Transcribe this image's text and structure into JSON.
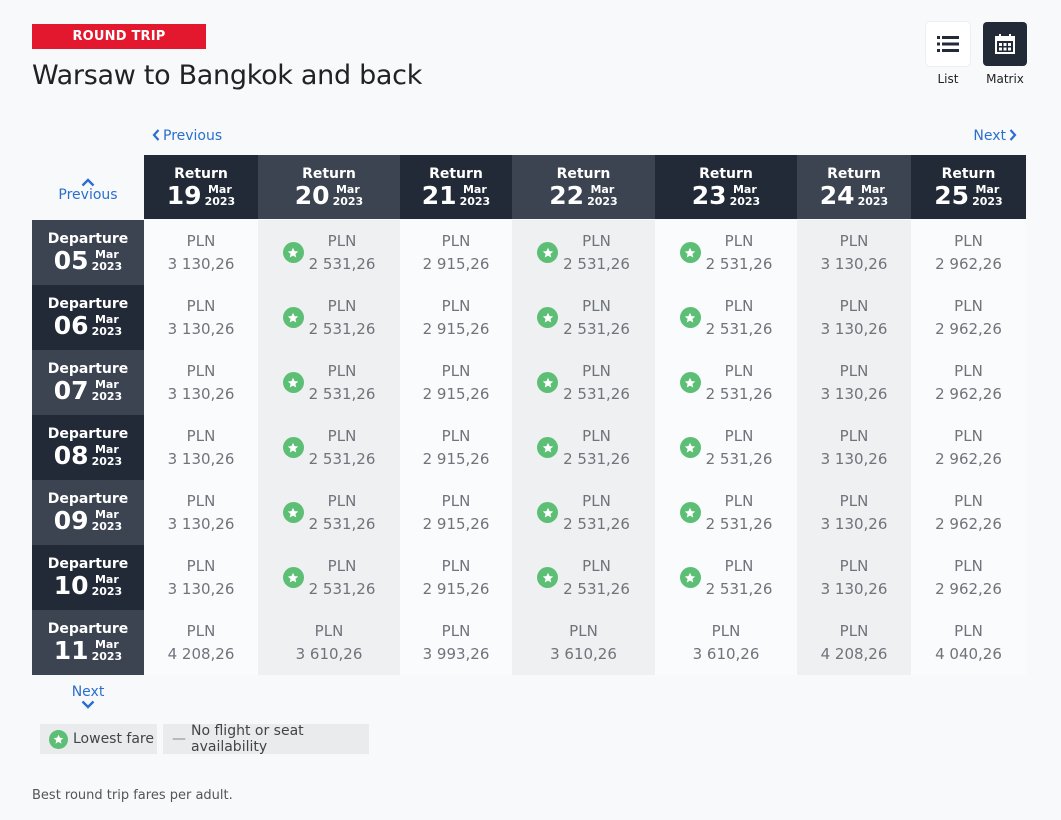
{
  "badge": "ROUND TRIP",
  "title": "Warsaw to Bangkok and back",
  "view": {
    "list_label": "List",
    "matrix_label": "Matrix",
    "selected": "Matrix"
  },
  "nav": {
    "previous": "Previous",
    "next": "Next",
    "previous_row": "Previous",
    "next_row": "Next"
  },
  "columns": [
    {
      "label": "Return",
      "day": "19",
      "month": "Mar",
      "year": "2023"
    },
    {
      "label": "Return",
      "day": "20",
      "month": "Mar",
      "year": "2023"
    },
    {
      "label": "Return",
      "day": "21",
      "month": "Mar",
      "year": "2023"
    },
    {
      "label": "Return",
      "day": "22",
      "month": "Mar",
      "year": "2023"
    },
    {
      "label": "Return",
      "day": "23",
      "month": "Mar",
      "year": "2023"
    },
    {
      "label": "Return",
      "day": "24",
      "month": "Mar",
      "year": "2023"
    },
    {
      "label": "Return",
      "day": "25",
      "month": "Mar",
      "year": "2023"
    }
  ],
  "rows": [
    {
      "label": "Departure",
      "day": "05",
      "month": "Mar",
      "year": "2023",
      "cells": [
        {
          "currency": "PLN",
          "price": "3 130,26",
          "lowest": false
        },
        {
          "currency": "PLN",
          "price": "2 531,26",
          "lowest": true
        },
        {
          "currency": "PLN",
          "price": "2 915,26",
          "lowest": false
        },
        {
          "currency": "PLN",
          "price": "2 531,26",
          "lowest": true
        },
        {
          "currency": "PLN",
          "price": "2 531,26",
          "lowest": true
        },
        {
          "currency": "PLN",
          "price": "3 130,26",
          "lowest": false
        },
        {
          "currency": "PLN",
          "price": "2 962,26",
          "lowest": false
        }
      ]
    },
    {
      "label": "Departure",
      "day": "06",
      "month": "Mar",
      "year": "2023",
      "cells": [
        {
          "currency": "PLN",
          "price": "3 130,26",
          "lowest": false
        },
        {
          "currency": "PLN",
          "price": "2 531,26",
          "lowest": true
        },
        {
          "currency": "PLN",
          "price": "2 915,26",
          "lowest": false
        },
        {
          "currency": "PLN",
          "price": "2 531,26",
          "lowest": true
        },
        {
          "currency": "PLN",
          "price": "2 531,26",
          "lowest": true
        },
        {
          "currency": "PLN",
          "price": "3 130,26",
          "lowest": false
        },
        {
          "currency": "PLN",
          "price": "2 962,26",
          "lowest": false
        }
      ]
    },
    {
      "label": "Departure",
      "day": "07",
      "month": "Mar",
      "year": "2023",
      "cells": [
        {
          "currency": "PLN",
          "price": "3 130,26",
          "lowest": false
        },
        {
          "currency": "PLN",
          "price": "2 531,26",
          "lowest": true
        },
        {
          "currency": "PLN",
          "price": "2 915,26",
          "lowest": false
        },
        {
          "currency": "PLN",
          "price": "2 531,26",
          "lowest": true
        },
        {
          "currency": "PLN",
          "price": "2 531,26",
          "lowest": true
        },
        {
          "currency": "PLN",
          "price": "3 130,26",
          "lowest": false
        },
        {
          "currency": "PLN",
          "price": "2 962,26",
          "lowest": false
        }
      ]
    },
    {
      "label": "Departure",
      "day": "08",
      "month": "Mar",
      "year": "2023",
      "cells": [
        {
          "currency": "PLN",
          "price": "3 130,26",
          "lowest": false
        },
        {
          "currency": "PLN",
          "price": "2 531,26",
          "lowest": true
        },
        {
          "currency": "PLN",
          "price": "2 915,26",
          "lowest": false
        },
        {
          "currency": "PLN",
          "price": "2 531,26",
          "lowest": true
        },
        {
          "currency": "PLN",
          "price": "2 531,26",
          "lowest": true
        },
        {
          "currency": "PLN",
          "price": "3 130,26",
          "lowest": false
        },
        {
          "currency": "PLN",
          "price": "2 962,26",
          "lowest": false
        }
      ]
    },
    {
      "label": "Departure",
      "day": "09",
      "month": "Mar",
      "year": "2023",
      "cells": [
        {
          "currency": "PLN",
          "price": "3 130,26",
          "lowest": false
        },
        {
          "currency": "PLN",
          "price": "2 531,26",
          "lowest": true
        },
        {
          "currency": "PLN",
          "price": "2 915,26",
          "lowest": false
        },
        {
          "currency": "PLN",
          "price": "2 531,26",
          "lowest": true
        },
        {
          "currency": "PLN",
          "price": "2 531,26",
          "lowest": true
        },
        {
          "currency": "PLN",
          "price": "3 130,26",
          "lowest": false
        },
        {
          "currency": "PLN",
          "price": "2 962,26",
          "lowest": false
        }
      ]
    },
    {
      "label": "Departure",
      "day": "10",
      "month": "Mar",
      "year": "2023",
      "cells": [
        {
          "currency": "PLN",
          "price": "3 130,26",
          "lowest": false
        },
        {
          "currency": "PLN",
          "price": "2 531,26",
          "lowest": true
        },
        {
          "currency": "PLN",
          "price": "2 915,26",
          "lowest": false
        },
        {
          "currency": "PLN",
          "price": "2 531,26",
          "lowest": true
        },
        {
          "currency": "PLN",
          "price": "2 531,26",
          "lowest": true
        },
        {
          "currency": "PLN",
          "price": "3 130,26",
          "lowest": false
        },
        {
          "currency": "PLN",
          "price": "2 962,26",
          "lowest": false
        }
      ]
    },
    {
      "label": "Departure",
      "day": "11",
      "month": "Mar",
      "year": "2023",
      "cells": [
        {
          "currency": "PLN",
          "price": "4 208,26",
          "lowest": false
        },
        {
          "currency": "PLN",
          "price": "3 610,26",
          "lowest": false
        },
        {
          "currency": "PLN",
          "price": "3 993,26",
          "lowest": false
        },
        {
          "currency": "PLN",
          "price": "3 610,26",
          "lowest": false
        },
        {
          "currency": "PLN",
          "price": "3 610,26",
          "lowest": false
        },
        {
          "currency": "PLN",
          "price": "4 208,26",
          "lowest": false
        },
        {
          "currency": "PLN",
          "price": "4 040,26",
          "lowest": false
        }
      ]
    }
  ],
  "legend": {
    "lowest_fare": "Lowest fare",
    "no_flight": "No flight or seat availability",
    "dash": "—"
  },
  "footnote": "Best round trip fares per adult.",
  "colors": {
    "brand_red": "#e3172d",
    "header_dark": "#232a37",
    "header_light": "#3c4351",
    "star_green": "#5dbf75",
    "link_blue": "#2a6fce"
  }
}
